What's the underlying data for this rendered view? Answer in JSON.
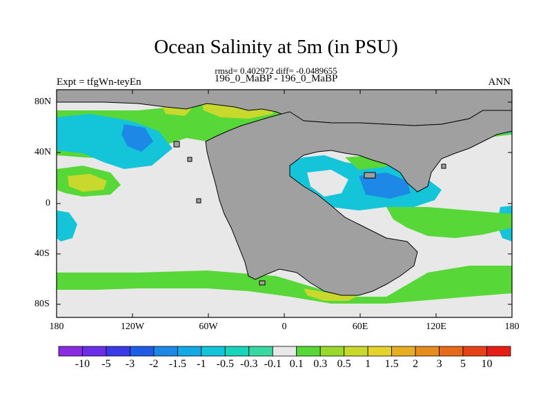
{
  "title": "Ocean Salinity at 5m (in PSU)",
  "stats": "rmsd= 0.402972 diff= -0.0489655",
  "subtitle": "196_0_MaBP - 196_0_MaBP",
  "left_label": "Expt = tfgWn-teyEn",
  "right_label": "ANN",
  "lat_ticks": [
    "80N",
    "40N",
    "0",
    "40S",
    "80S"
  ],
  "lon_ticks": [
    "180",
    "120W",
    "60W",
    "0",
    "60E",
    "120E",
    "180"
  ],
  "colorbar": {
    "labels": [
      "-10",
      "-5",
      "-3",
      "-2",
      "-1.5",
      "-1",
      "-0.5",
      "-0.3",
      "-0.1",
      "0.1",
      "0.3",
      "0.5",
      "1",
      "1.5",
      "2",
      "3",
      "5",
      "10"
    ],
    "colors": [
      "#8a2be2",
      "#6a2ee6",
      "#3a3ae6",
      "#1e5ce6",
      "#1e88e6",
      "#14a8e6",
      "#14c4d8",
      "#18d4b8",
      "#38d8a0",
      "#e8e8e8",
      "#58d838",
      "#9ad82c",
      "#c8d82c",
      "#e6d22c",
      "#e6ae24",
      "#e68c1e",
      "#e66a1a",
      "#e6421a",
      "#e61e14"
    ]
  },
  "colors": {
    "land": "#a0a0a0",
    "neutral": "#e8e8e8"
  }
}
